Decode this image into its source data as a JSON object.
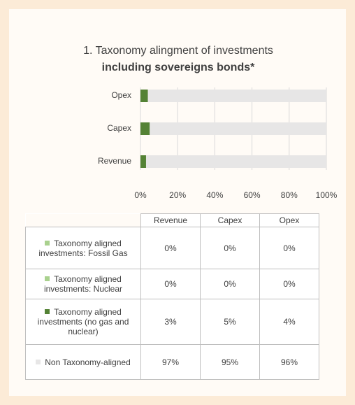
{
  "chart_data": {
    "type": "stacked_bar_horizontal",
    "title": "1. Taxonomy alingment of investments",
    "subtitle": "including sovereigns bonds*",
    "categories": [
      "Revenue",
      "Capex",
      "Opex"
    ],
    "series": [
      {
        "name": "Taxonomy aligned investments: Fossil Gas",
        "color": "#a9d18e",
        "values": [
          0,
          0,
          0
        ],
        "value_labels": [
          "0%",
          "0%",
          "0%"
        ]
      },
      {
        "name": "Taxonomy aligned investments: Nuclear",
        "color": "#a9d18e",
        "values": [
          0,
          0,
          0
        ],
        "value_labels": [
          "0%",
          "0%",
          "0%"
        ]
      },
      {
        "name": "Taxonomy aligned investments (no gas and nuclear)",
        "color": "#548235",
        "values": [
          3,
          5,
          4
        ],
        "value_labels": [
          "3%",
          "5%",
          "4%"
        ]
      },
      {
        "name": "Non Taxonomy-aligned",
        "color": "#e7e6e6",
        "values": [
          97,
          95,
          96
        ],
        "value_labels": [
          "97%",
          "95%",
          "96%"
        ]
      }
    ],
    "xlim": [
      0,
      100
    ],
    "xticks": [
      {
        "value": 0,
        "label": "0%"
      },
      {
        "value": 20,
        "label": "20%"
      },
      {
        "value": 40,
        "label": "40%"
      },
      {
        "value": 60,
        "label": "60%"
      },
      {
        "value": 80,
        "label": "80%"
      },
      {
        "value": 100,
        "label": "100%"
      }
    ],
    "grid": true
  }
}
